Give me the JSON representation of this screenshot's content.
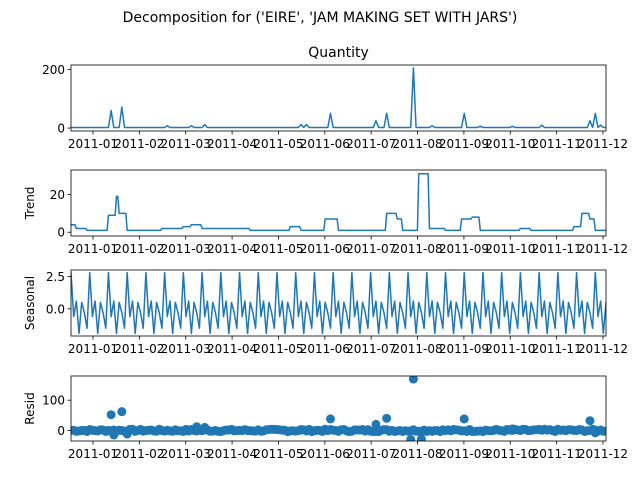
{
  "figure": {
    "suptitle": "Decomposition for ('EIRE', 'JAM MAKING SET WITH JARS')",
    "line_color": "#1f77b4"
  },
  "x_ticks": [
    "2011-01",
    "2011-02",
    "2011-03",
    "2011-04",
    "2011-05",
    "2011-06",
    "2011-07",
    "2011-08",
    "2011-09",
    "2011-10",
    "2011-11",
    "2011-12"
  ],
  "chart_data": [
    {
      "type": "line",
      "title": "Quantity",
      "ylabel": "",
      "ylim": [
        -10,
        215
      ],
      "yticks": [
        0,
        200
      ],
      "xlim": [
        0,
        200
      ],
      "baseline": 2,
      "spikes": [
        [
          15,
          60
        ],
        [
          19,
          72
        ],
        [
          36,
          8
        ],
        [
          45,
          8
        ],
        [
          50,
          12
        ],
        [
          86,
          12
        ],
        [
          88,
          12
        ],
        [
          97,
          50
        ],
        [
          114,
          25
        ],
        [
          118,
          50
        ],
        [
          128,
          205
        ],
        [
          135,
          8
        ],
        [
          147,
          50
        ],
        [
          153,
          6
        ],
        [
          165,
          6
        ],
        [
          176,
          10
        ],
        [
          194,
          25
        ],
        [
          196,
          50
        ],
        [
          198,
          10
        ]
      ]
    },
    {
      "type": "line",
      "title": "",
      "ylabel": "Trend",
      "ylim": [
        -2,
        33
      ],
      "yticks": [
        0,
        20
      ],
      "xlim": [
        0,
        200
      ],
      "segments": [
        [
          0,
          4
        ],
        [
          2,
          2
        ],
        [
          6,
          1
        ],
        [
          14,
          9
        ],
        [
          17,
          19
        ],
        [
          18,
          10
        ],
        [
          21,
          1
        ],
        [
          30,
          1
        ],
        [
          34,
          2
        ],
        [
          42,
          3
        ],
        [
          45,
          4
        ],
        [
          49,
          2
        ],
        [
          63,
          2
        ],
        [
          67,
          1
        ],
        [
          82,
          3
        ],
        [
          86,
          1
        ],
        [
          95,
          7
        ],
        [
          100,
          1
        ],
        [
          104,
          1
        ],
        [
          118,
          10
        ],
        [
          122,
          7
        ],
        [
          124,
          1
        ],
        [
          130,
          31
        ],
        [
          134,
          2
        ],
        [
          140,
          1
        ],
        [
          146,
          7
        ],
        [
          150,
          8
        ],
        [
          153,
          1
        ],
        [
          158,
          1
        ],
        [
          162,
          1
        ],
        [
          168,
          2
        ],
        [
          172,
          1
        ],
        [
          178,
          1
        ],
        [
          184,
          1
        ],
        [
          188,
          3
        ],
        [
          191,
          10
        ],
        [
          194,
          7
        ],
        [
          196,
          1
        ],
        [
          200,
          1
        ]
      ]
    },
    {
      "type": "line",
      "title": "",
      "ylabel": "Seasonal",
      "ylim": [
        -2.1,
        3.0
      ],
      "yticks": [
        0.0,
        2.5
      ],
      "xlim": [
        0,
        200
      ],
      "period": 7,
      "pattern": [
        2.8,
        -0.6,
        0.6,
        -1.9,
        0.5,
        -0.3,
        -1.5
      ]
    },
    {
      "type": "scatter",
      "title": "",
      "ylabel": "Resid",
      "ylim": [
        -35,
        180
      ],
      "yticks": [
        0,
        100
      ],
      "xlim": [
        0,
        200
      ],
      "outliers": [
        [
          15,
          52
        ],
        [
          19,
          62
        ],
        [
          16,
          -15
        ],
        [
          21,
          -12
        ],
        [
          47,
          12
        ],
        [
          50,
          10
        ],
        [
          86,
          3
        ],
        [
          97,
          38
        ],
        [
          114,
          20
        ],
        [
          118,
          40
        ],
        [
          128,
          170
        ],
        [
          127,
          -30
        ],
        [
          131,
          -28
        ],
        [
          147,
          38
        ],
        [
          165,
          5
        ],
        [
          194,
          32
        ],
        [
          196,
          -8
        ]
      ]
    }
  ]
}
